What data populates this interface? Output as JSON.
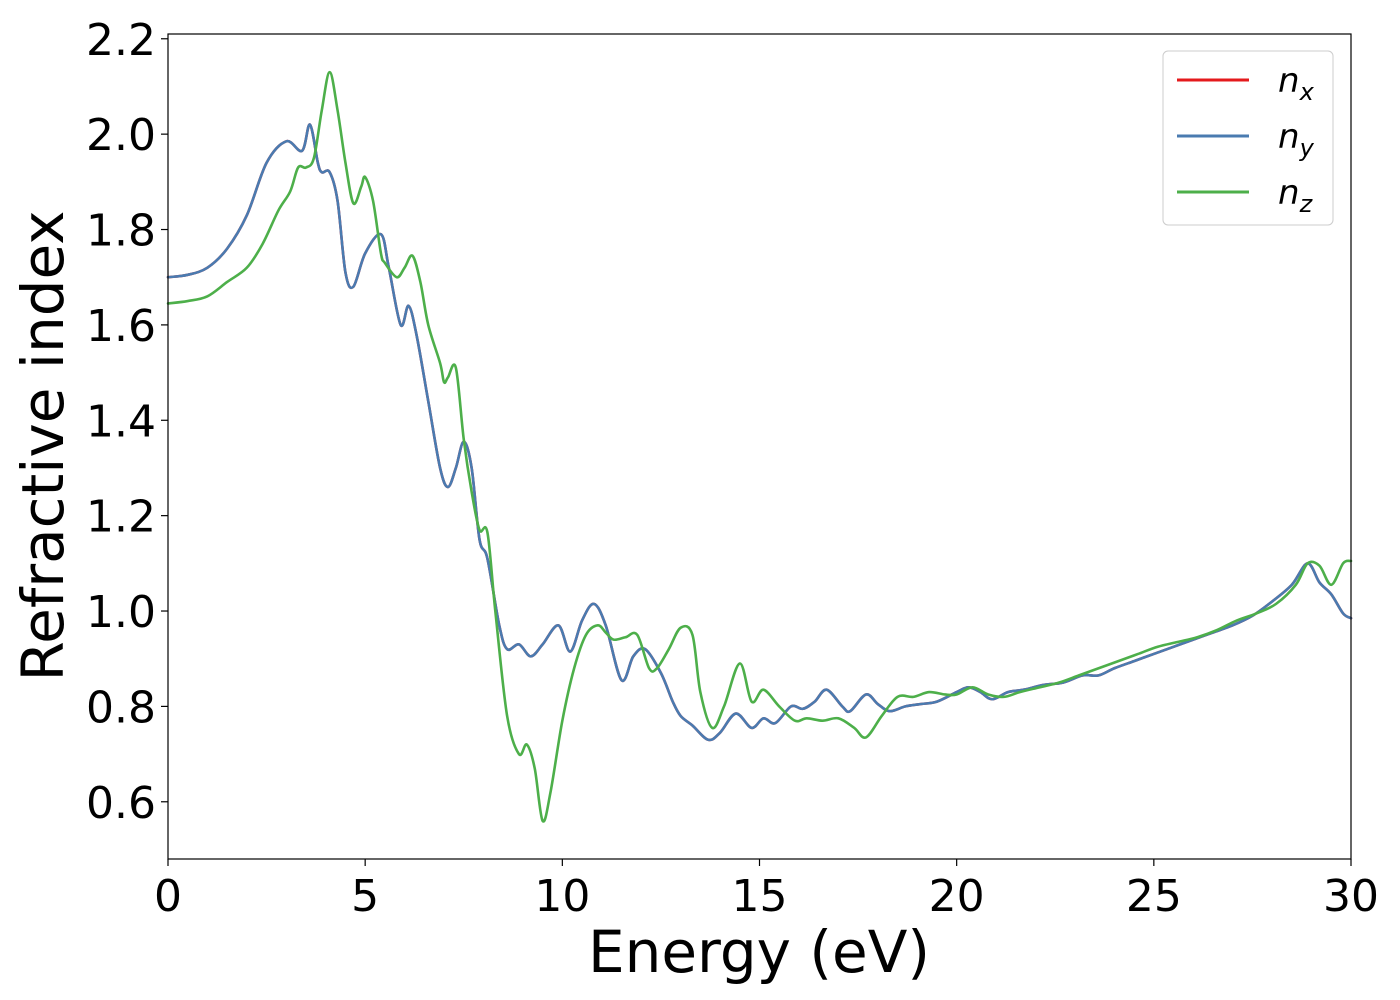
{
  "chart_data": {
    "type": "line",
    "title": "",
    "xlabel": "Energy (eV)",
    "ylabel": "Refractive index",
    "xlim": [
      0,
      30
    ],
    "ylim": [
      0.48,
      2.21
    ],
    "xticks": [
      0,
      5,
      10,
      15,
      20,
      25,
      30
    ],
    "xtick_labels": [
      "0",
      "5",
      "10",
      "15",
      "20",
      "25",
      "30"
    ],
    "yticks": [
      0.6,
      0.8,
      1.0,
      1.2,
      1.4,
      1.6,
      1.8,
      2.0,
      2.2
    ],
    "ytick_labels": [
      "0.6",
      "0.8",
      "1.0",
      "1.2",
      "1.4",
      "1.6",
      "1.8",
      "2.0",
      "2.2"
    ],
    "grid": false,
    "legend_position": "top-right",
    "series": [
      {
        "name": "n",
        "subscript": "x",
        "color": "#e41a1c",
        "points": [
          [
            0,
            1.7
          ],
          [
            0.5,
            1.705
          ],
          [
            1.0,
            1.72
          ],
          [
            1.5,
            1.76
          ],
          [
            2.0,
            1.83
          ],
          [
            2.5,
            1.94
          ],
          [
            3.0,
            1.985
          ],
          [
            3.4,
            1.965
          ],
          [
            3.6,
            2.02
          ],
          [
            3.8,
            1.94
          ],
          [
            3.9,
            1.92
          ],
          [
            4.1,
            1.92
          ],
          [
            4.3,
            1.86
          ],
          [
            4.5,
            1.71
          ],
          [
            4.7,
            1.68
          ],
          [
            5.0,
            1.75
          ],
          [
            5.4,
            1.79
          ],
          [
            5.6,
            1.72
          ],
          [
            5.9,
            1.6
          ],
          [
            6.1,
            1.64
          ],
          [
            6.3,
            1.58
          ],
          [
            6.6,
            1.44
          ],
          [
            6.9,
            1.3
          ],
          [
            7.1,
            1.26
          ],
          [
            7.3,
            1.3
          ],
          [
            7.5,
            1.355
          ],
          [
            7.7,
            1.3
          ],
          [
            7.9,
            1.15
          ],
          [
            8.1,
            1.11
          ],
          [
            8.4,
            0.97
          ],
          [
            8.6,
            0.92
          ],
          [
            8.9,
            0.93
          ],
          [
            9.2,
            0.905
          ],
          [
            9.5,
            0.93
          ],
          [
            9.9,
            0.97
          ],
          [
            10.2,
            0.915
          ],
          [
            10.5,
            0.98
          ],
          [
            10.8,
            1.015
          ],
          [
            11.1,
            0.97
          ],
          [
            11.5,
            0.855
          ],
          [
            11.8,
            0.905
          ],
          [
            12.1,
            0.92
          ],
          [
            12.5,
            0.87
          ],
          [
            12.8,
            0.81
          ],
          [
            13.0,
            0.78
          ],
          [
            13.3,
            0.76
          ],
          [
            13.7,
            0.73
          ],
          [
            14.0,
            0.745
          ],
          [
            14.4,
            0.785
          ],
          [
            14.8,
            0.755
          ],
          [
            15.1,
            0.775
          ],
          [
            15.4,
            0.765
          ],
          [
            15.8,
            0.8
          ],
          [
            16.1,
            0.795
          ],
          [
            16.4,
            0.81
          ],
          [
            16.7,
            0.835
          ],
          [
            17.1,
            0.8
          ],
          [
            17.3,
            0.79
          ],
          [
            17.7,
            0.825
          ],
          [
            18.0,
            0.805
          ],
          [
            18.3,
            0.79
          ],
          [
            18.7,
            0.8
          ],
          [
            19.1,
            0.805
          ],
          [
            19.5,
            0.81
          ],
          [
            20.0,
            0.83
          ],
          [
            20.3,
            0.84
          ],
          [
            20.6,
            0.83
          ],
          [
            20.9,
            0.815
          ],
          [
            21.3,
            0.83
          ],
          [
            21.7,
            0.835
          ],
          [
            22.2,
            0.845
          ],
          [
            22.7,
            0.85
          ],
          [
            23.2,
            0.865
          ],
          [
            23.6,
            0.865
          ],
          [
            24.0,
            0.88
          ],
          [
            24.5,
            0.895
          ],
          [
            25.0,
            0.91
          ],
          [
            25.5,
            0.925
          ],
          [
            26.0,
            0.94
          ],
          [
            26.5,
            0.955
          ],
          [
            27.0,
            0.97
          ],
          [
            27.5,
            0.99
          ],
          [
            28.0,
            1.02
          ],
          [
            28.5,
            1.055
          ],
          [
            28.9,
            1.1
          ],
          [
            29.2,
            1.06
          ],
          [
            29.5,
            1.035
          ],
          [
            29.8,
            0.995
          ],
          [
            30.0,
            0.985
          ]
        ]
      },
      {
        "name": "n",
        "subscript": "y",
        "color": "#4a7bb0",
        "points": [
          [
            0,
            1.7
          ],
          [
            0.5,
            1.705
          ],
          [
            1.0,
            1.72
          ],
          [
            1.5,
            1.76
          ],
          [
            2.0,
            1.83
          ],
          [
            2.5,
            1.94
          ],
          [
            3.0,
            1.985
          ],
          [
            3.4,
            1.965
          ],
          [
            3.6,
            2.02
          ],
          [
            3.8,
            1.94
          ],
          [
            3.9,
            1.92
          ],
          [
            4.1,
            1.92
          ],
          [
            4.3,
            1.86
          ],
          [
            4.5,
            1.71
          ],
          [
            4.7,
            1.68
          ],
          [
            5.0,
            1.75
          ],
          [
            5.4,
            1.79
          ],
          [
            5.6,
            1.72
          ],
          [
            5.9,
            1.6
          ],
          [
            6.1,
            1.64
          ],
          [
            6.3,
            1.58
          ],
          [
            6.6,
            1.44
          ],
          [
            6.9,
            1.3
          ],
          [
            7.1,
            1.26
          ],
          [
            7.3,
            1.3
          ],
          [
            7.5,
            1.355
          ],
          [
            7.7,
            1.3
          ],
          [
            7.9,
            1.15
          ],
          [
            8.1,
            1.11
          ],
          [
            8.4,
            0.97
          ],
          [
            8.6,
            0.92
          ],
          [
            8.9,
            0.93
          ],
          [
            9.2,
            0.905
          ],
          [
            9.5,
            0.93
          ],
          [
            9.9,
            0.97
          ],
          [
            10.2,
            0.915
          ],
          [
            10.5,
            0.98
          ],
          [
            10.8,
            1.015
          ],
          [
            11.1,
            0.97
          ],
          [
            11.5,
            0.855
          ],
          [
            11.8,
            0.905
          ],
          [
            12.1,
            0.92
          ],
          [
            12.5,
            0.87
          ],
          [
            12.8,
            0.81
          ],
          [
            13.0,
            0.78
          ],
          [
            13.3,
            0.76
          ],
          [
            13.7,
            0.73
          ],
          [
            14.0,
            0.745
          ],
          [
            14.4,
            0.785
          ],
          [
            14.8,
            0.755
          ],
          [
            15.1,
            0.775
          ],
          [
            15.4,
            0.765
          ],
          [
            15.8,
            0.8
          ],
          [
            16.1,
            0.795
          ],
          [
            16.4,
            0.81
          ],
          [
            16.7,
            0.835
          ],
          [
            17.1,
            0.8
          ],
          [
            17.3,
            0.79
          ],
          [
            17.7,
            0.825
          ],
          [
            18.0,
            0.805
          ],
          [
            18.3,
            0.79
          ],
          [
            18.7,
            0.8
          ],
          [
            19.1,
            0.805
          ],
          [
            19.5,
            0.81
          ],
          [
            20.0,
            0.83
          ],
          [
            20.3,
            0.84
          ],
          [
            20.6,
            0.83
          ],
          [
            20.9,
            0.815
          ],
          [
            21.3,
            0.83
          ],
          [
            21.7,
            0.835
          ],
          [
            22.2,
            0.845
          ],
          [
            22.7,
            0.85
          ],
          [
            23.2,
            0.865
          ],
          [
            23.6,
            0.865
          ],
          [
            24.0,
            0.88
          ],
          [
            24.5,
            0.895
          ],
          [
            25.0,
            0.91
          ],
          [
            25.5,
            0.925
          ],
          [
            26.0,
            0.94
          ],
          [
            26.5,
            0.955
          ],
          [
            27.0,
            0.97
          ],
          [
            27.5,
            0.99
          ],
          [
            28.0,
            1.02
          ],
          [
            28.5,
            1.055
          ],
          [
            28.9,
            1.1
          ],
          [
            29.2,
            1.06
          ],
          [
            29.5,
            1.035
          ],
          [
            29.8,
            0.995
          ],
          [
            30.0,
            0.985
          ]
        ]
      },
      {
        "name": "n",
        "subscript": "z",
        "color": "#4daf4a",
        "points": [
          [
            0,
            1.645
          ],
          [
            0.5,
            1.65
          ],
          [
            1.0,
            1.66
          ],
          [
            1.5,
            1.69
          ],
          [
            2.0,
            1.72
          ],
          [
            2.4,
            1.77
          ],
          [
            2.8,
            1.84
          ],
          [
            3.1,
            1.88
          ],
          [
            3.3,
            1.93
          ],
          [
            3.5,
            1.93
          ],
          [
            3.7,
            1.95
          ],
          [
            3.9,
            2.05
          ],
          [
            4.1,
            2.13
          ],
          [
            4.3,
            2.05
          ],
          [
            4.5,
            1.94
          ],
          [
            4.7,
            1.855
          ],
          [
            4.9,
            1.89
          ],
          [
            5.0,
            1.91
          ],
          [
            5.2,
            1.86
          ],
          [
            5.4,
            1.75
          ],
          [
            5.5,
            1.73
          ],
          [
            5.8,
            1.7
          ],
          [
            6.0,
            1.72
          ],
          [
            6.2,
            1.745
          ],
          [
            6.4,
            1.69
          ],
          [
            6.6,
            1.6
          ],
          [
            6.9,
            1.52
          ],
          [
            7.0,
            1.48
          ],
          [
            7.1,
            1.49
          ],
          [
            7.3,
            1.51
          ],
          [
            7.5,
            1.36
          ],
          [
            7.7,
            1.25
          ],
          [
            7.9,
            1.17
          ],
          [
            8.1,
            1.165
          ],
          [
            8.3,
            1.0
          ],
          [
            8.6,
            0.78
          ],
          [
            8.9,
            0.7
          ],
          [
            9.1,
            0.72
          ],
          [
            9.3,
            0.67
          ],
          [
            9.5,
            0.56
          ],
          [
            9.7,
            0.62
          ],
          [
            10.0,
            0.77
          ],
          [
            10.3,
            0.88
          ],
          [
            10.6,
            0.95
          ],
          [
            10.9,
            0.97
          ],
          [
            11.1,
            0.955
          ],
          [
            11.3,
            0.94
          ],
          [
            11.6,
            0.945
          ],
          [
            11.9,
            0.95
          ],
          [
            12.2,
            0.88
          ],
          [
            12.4,
            0.88
          ],
          [
            12.7,
            0.92
          ],
          [
            13.0,
            0.965
          ],
          [
            13.3,
            0.95
          ],
          [
            13.5,
            0.83
          ],
          [
            13.8,
            0.755
          ],
          [
            14.1,
            0.8
          ],
          [
            14.5,
            0.89
          ],
          [
            14.8,
            0.81
          ],
          [
            15.1,
            0.835
          ],
          [
            15.5,
            0.8
          ],
          [
            15.9,
            0.77
          ],
          [
            16.2,
            0.775
          ],
          [
            16.6,
            0.77
          ],
          [
            17.0,
            0.775
          ],
          [
            17.4,
            0.755
          ],
          [
            17.7,
            0.735
          ],
          [
            18.1,
            0.78
          ],
          [
            18.5,
            0.82
          ],
          [
            18.9,
            0.82
          ],
          [
            19.3,
            0.83
          ],
          [
            19.7,
            0.825
          ],
          [
            20.0,
            0.825
          ],
          [
            20.4,
            0.84
          ],
          [
            20.8,
            0.825
          ],
          [
            21.2,
            0.82
          ],
          [
            21.6,
            0.83
          ],
          [
            22.1,
            0.84
          ],
          [
            22.6,
            0.85
          ],
          [
            23.1,
            0.865
          ],
          [
            23.6,
            0.88
          ],
          [
            24.1,
            0.895
          ],
          [
            24.6,
            0.91
          ],
          [
            25.1,
            0.925
          ],
          [
            25.6,
            0.935
          ],
          [
            26.1,
            0.945
          ],
          [
            26.6,
            0.96
          ],
          [
            27.1,
            0.98
          ],
          [
            27.6,
            0.995
          ],
          [
            28.1,
            1.015
          ],
          [
            28.6,
            1.055
          ],
          [
            28.9,
            1.1
          ],
          [
            29.2,
            1.095
          ],
          [
            29.5,
            1.055
          ],
          [
            29.8,
            1.1
          ],
          [
            30.0,
            1.105
          ]
        ]
      }
    ]
  }
}
